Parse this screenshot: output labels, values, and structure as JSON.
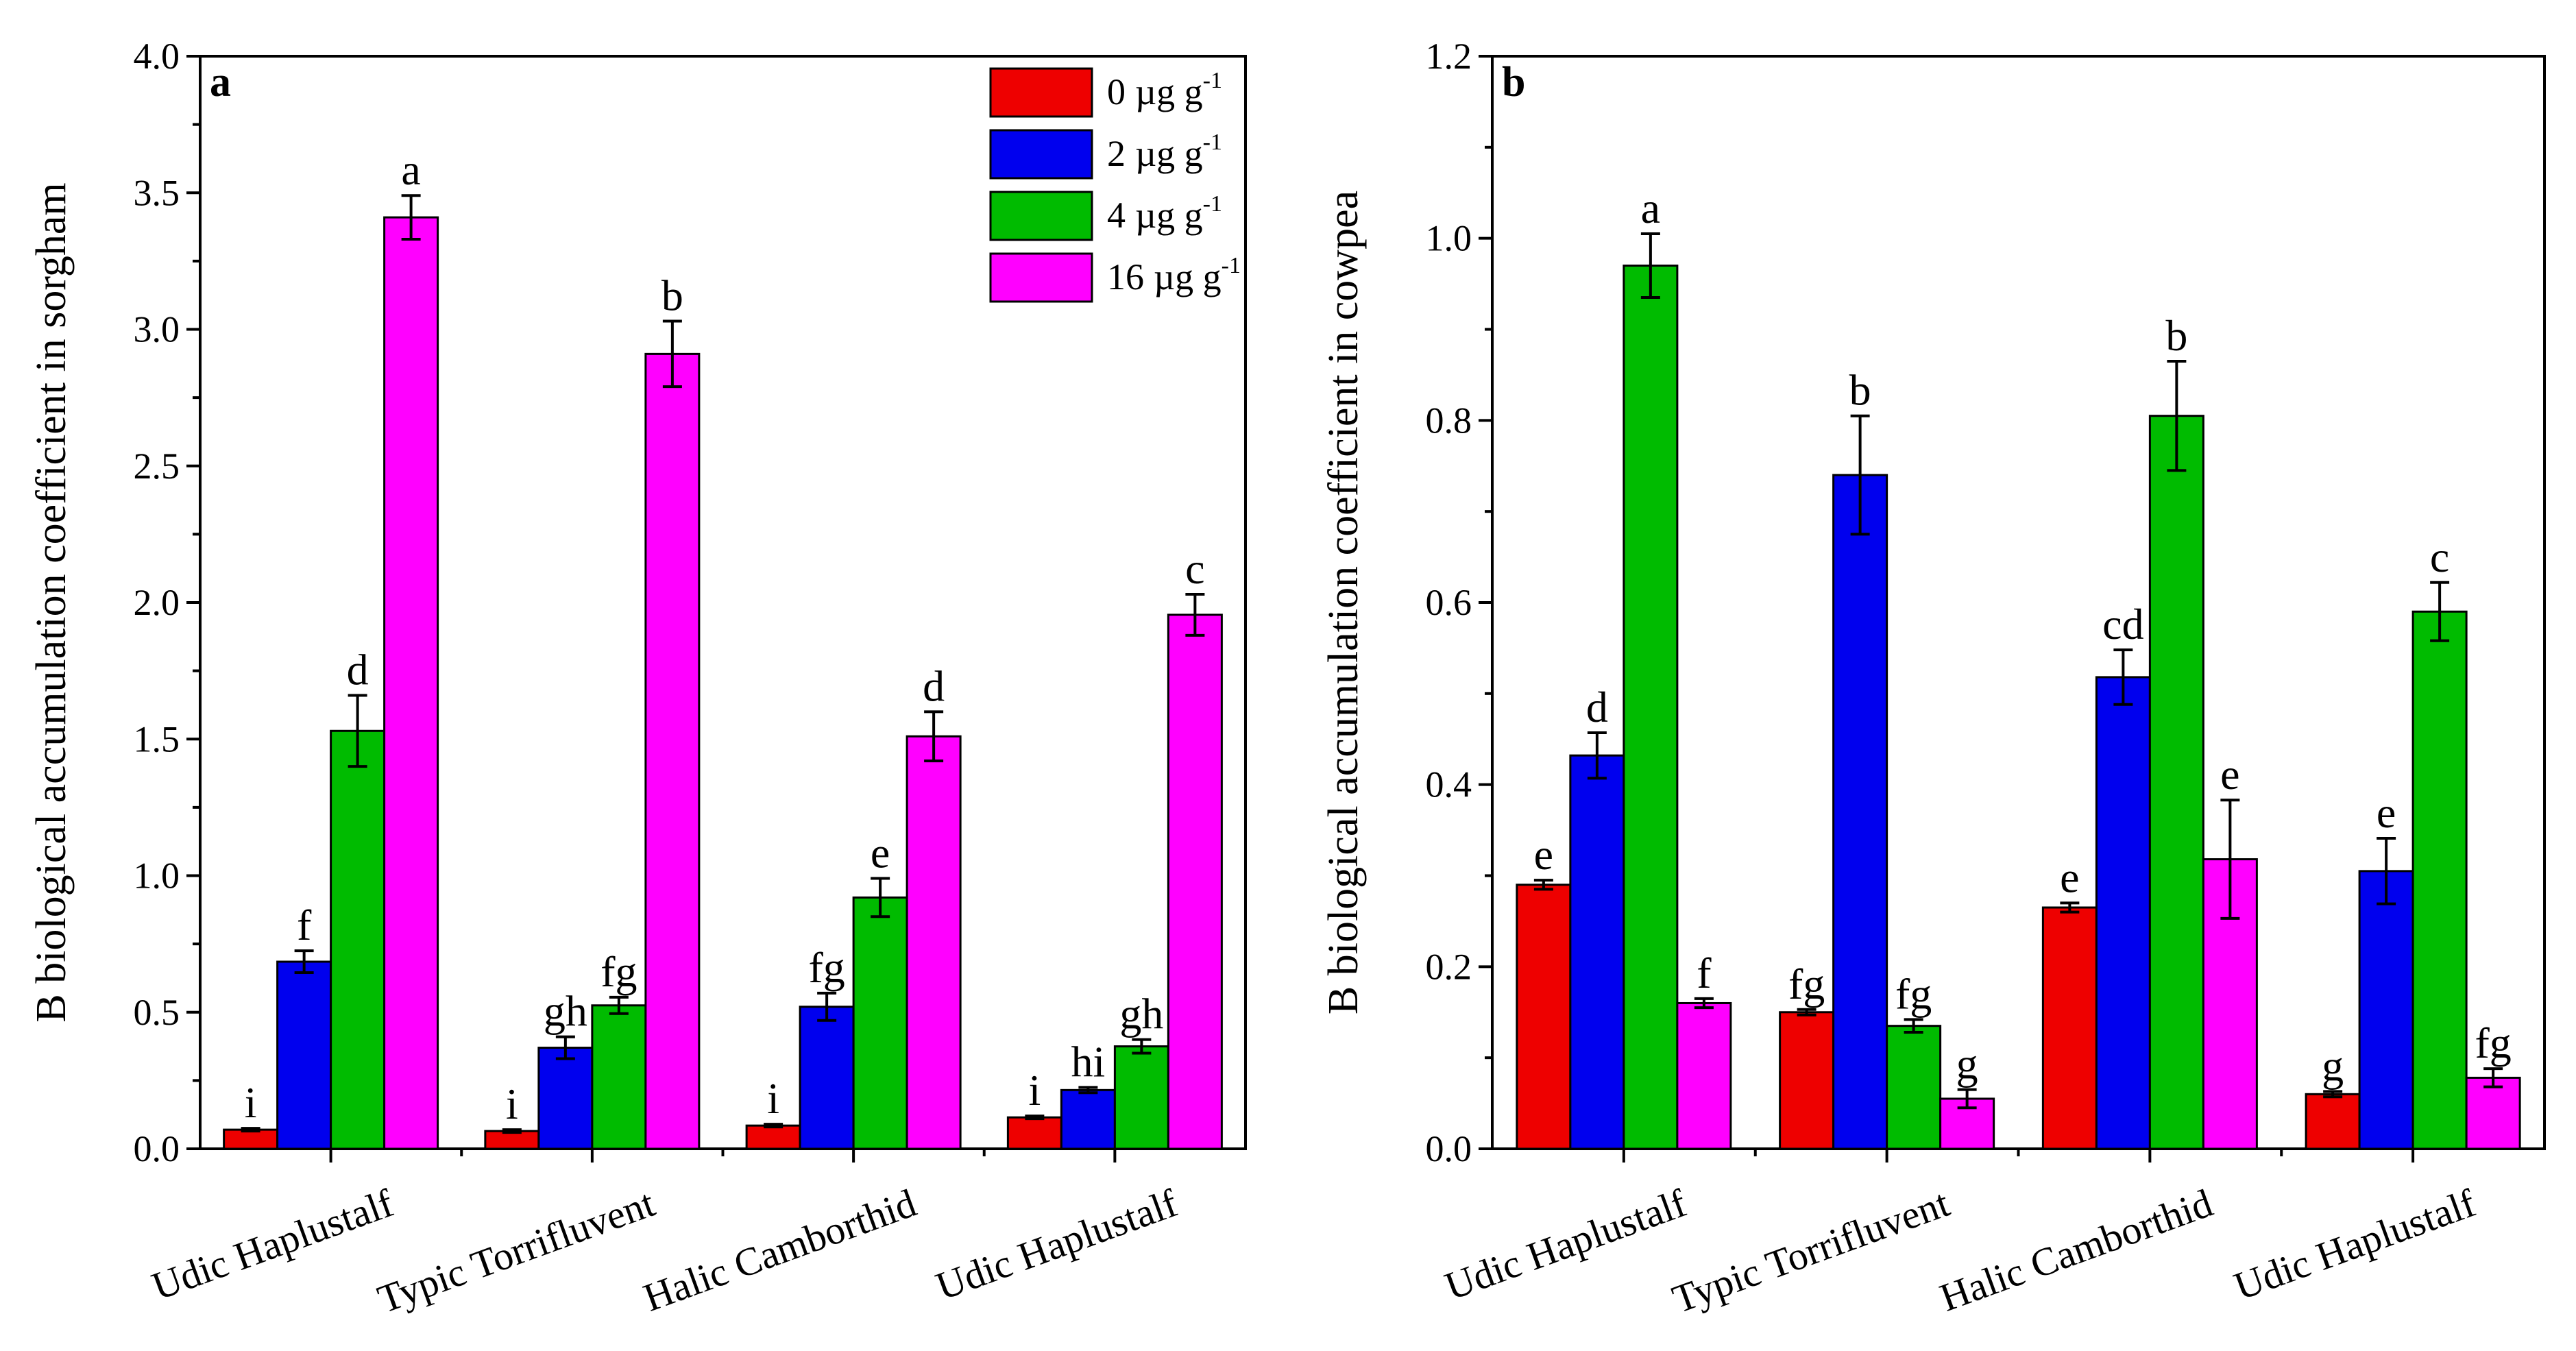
{
  "legend": {
    "unit": "µg g",
    "unit_exp": "-1",
    "entries": [
      {
        "value": "0",
        "color": "#ee0000"
      },
      {
        "value": "2",
        "color": "#0000ee"
      },
      {
        "value": "4",
        "color": "#00bb00"
      },
      {
        "value": "16",
        "color": "#ff00ff"
      }
    ]
  },
  "chart_data": [
    {
      "type": "bar",
      "panel": "a",
      "ylabel": "B biological accumulation coefficient in sorgham",
      "ylim": [
        0,
        4.0
      ],
      "ytick_values": [
        0,
        0.5,
        1.0,
        1.5,
        2.0,
        2.5,
        3.0,
        3.5,
        4.0
      ],
      "ytick_labels": [
        "0.0",
        "0.5",
        "1.0",
        "1.5",
        "2.0",
        "2.5",
        "3.0",
        "3.5",
        "4.0"
      ],
      "categories": [
        "Udic Haplustalf",
        "Typic Torrifluvent",
        "Halic Camborthid",
        "Udic Haplustalf"
      ],
      "series": [
        {
          "name": "0 µg g-1",
          "values": [
            0.07,
            0.065,
            0.085,
            0.115
          ],
          "errors": [
            0.005,
            0.005,
            0.005,
            0.005
          ],
          "letters": [
            "i",
            "i",
            "i",
            "i"
          ]
        },
        {
          "name": "2 µg g-1",
          "values": [
            0.685,
            0.37,
            0.52,
            0.215
          ],
          "errors": [
            0.04,
            0.04,
            0.05,
            0.01
          ],
          "letters": [
            "f",
            "gh",
            "fg",
            "hi"
          ]
        },
        {
          "name": "4 µg g-1",
          "values": [
            1.53,
            0.525,
            0.92,
            0.375
          ],
          "errors": [
            0.13,
            0.03,
            0.07,
            0.025
          ],
          "letters": [
            "d",
            "fg",
            "e",
            "gh"
          ]
        },
        {
          "name": "16 µg g-1",
          "values": [
            3.41,
            2.91,
            1.51,
            1.955
          ],
          "errors": [
            0.08,
            0.12,
            0.09,
            0.075
          ],
          "letters": [
            "a",
            "b",
            "d",
            "c"
          ]
        }
      ]
    },
    {
      "type": "bar",
      "panel": "b",
      "ylabel": "B biological accumulation coefficient in cowpea",
      "ylim": [
        0,
        1.2
      ],
      "ytick_values": [
        0,
        0.2,
        0.4,
        0.6,
        0.8,
        1.0,
        1.2
      ],
      "ytick_labels": [
        "0.0",
        "0.2",
        "0.4",
        "0.6",
        "0.8",
        "1.0",
        "1.2"
      ],
      "categories": [
        "Udic Haplustalf",
        "Typic Torrifluvent",
        "Halic Camborthid",
        "Udic Haplustalf"
      ],
      "series": [
        {
          "name": "0 µg g-1",
          "values": [
            0.29,
            0.15,
            0.265,
            0.06
          ],
          "errors": [
            0.005,
            0.003,
            0.005,
            0.003
          ],
          "letters": [
            "e",
            "fg",
            "e",
            "g"
          ]
        },
        {
          "name": "2 µg g-1",
          "values": [
            0.432,
            0.74,
            0.518,
            0.305
          ],
          "errors": [
            0.025,
            0.065,
            0.03,
            0.036
          ],
          "letters": [
            "d",
            "b",
            "cd",
            "e"
          ]
        },
        {
          "name": "4 µg g-1",
          "values": [
            0.97,
            0.135,
            0.805,
            0.59
          ],
          "errors": [
            0.035,
            0.007,
            0.06,
            0.032
          ],
          "letters": [
            "a",
            "fg",
            "b",
            "c"
          ]
        },
        {
          "name": "16 µg g-1",
          "values": [
            0.16,
            0.055,
            0.318,
            0.078
          ],
          "errors": [
            0.005,
            0.01,
            0.065,
            0.01
          ],
          "letters": [
            "f",
            "g",
            "e",
            "fg"
          ]
        }
      ]
    }
  ]
}
